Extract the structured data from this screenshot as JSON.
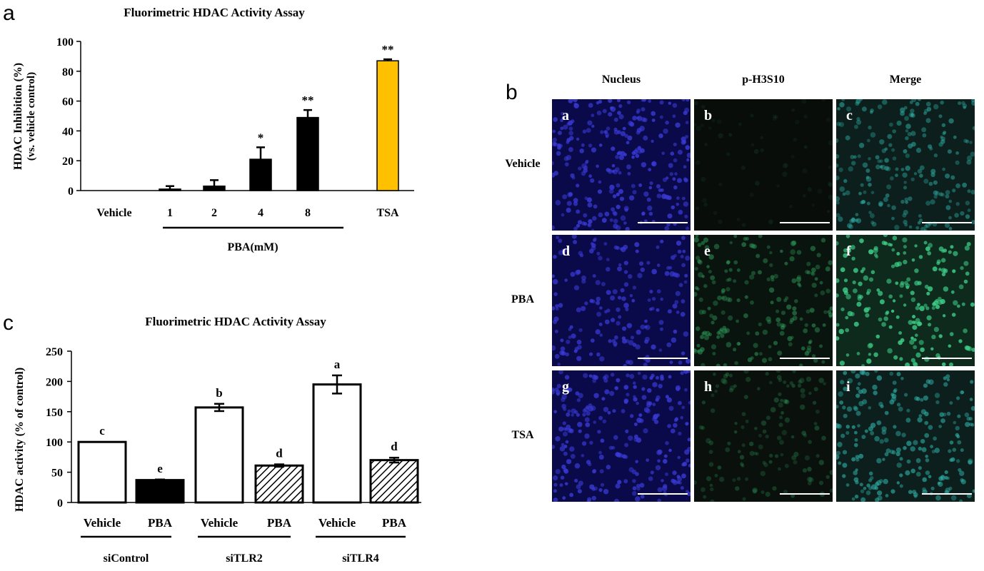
{
  "panels": {
    "a": {
      "letter": "a",
      "title": "Fluorimetric  HDAC Activity Assay"
    },
    "b": {
      "letter": "b"
    },
    "c": {
      "letter": "c",
      "title": "Fluorimetric  HDAC Activity Assay"
    }
  },
  "chart_data": [
    {
      "type": "bar",
      "title": "Fluorimetric  HDAC Activity Assay",
      "ylabel": "HDAC Inhibition  (%)",
      "ylabel2": "(vs. vehicle control)",
      "ylim": [
        0,
        100
      ],
      "yticks": [
        0,
        20,
        40,
        60,
        80,
        100
      ],
      "categories": [
        "Vehicle",
        "1",
        "2",
        "4",
        "8",
        "TSA"
      ],
      "values": [
        0,
        1,
        3,
        21,
        49,
        87
      ],
      "errors": [
        0,
        2,
        4,
        8,
        5,
        1
      ],
      "significance": [
        "",
        "",
        "",
        "*",
        "**",
        "**"
      ],
      "bar_colors": [
        "#000000",
        "#000000",
        "#000000",
        "#000000",
        "#000000",
        "#ffc000"
      ],
      "group_label": "PBA(mM)",
      "group_span": [
        "1",
        "8"
      ]
    },
    {
      "type": "bar",
      "title": "Fluorimetric  HDAC Activity Assay",
      "ylabel": "HDAC activity (% of control)",
      "ylim": [
        0,
        250
      ],
      "yticks": [
        0,
        50,
        100,
        150,
        200,
        250
      ],
      "categories": [
        "Vehicle",
        "PBA",
        "Vehicle",
        "PBA",
        "Vehicle",
        "PBA"
      ],
      "values": [
        100,
        37,
        157,
        61,
        195,
        70
      ],
      "errors": [
        0,
        1,
        6,
        2,
        15,
        4
      ],
      "significance": [
        "c",
        "e",
        "b",
        "d",
        "a",
        "d"
      ],
      "bar_fills": [
        "white",
        "black",
        "white",
        "hatch",
        "white",
        "hatch"
      ],
      "groups": [
        {
          "label": "siControl",
          "indices": [
            0,
            1
          ]
        },
        {
          "label": "siTLR2",
          "indices": [
            2,
            3
          ]
        },
        {
          "label": "siTLR4",
          "indices": [
            4,
            5
          ]
        }
      ]
    }
  ],
  "micrographs": {
    "columns": [
      "Nucleus",
      "p-H3S10",
      "Merge"
    ],
    "rows": [
      "Vehicle",
      "PBA",
      "TSA"
    ],
    "tags": [
      [
        "a",
        "b",
        "c"
      ],
      [
        "d",
        "e",
        "f"
      ],
      [
        "g",
        "h",
        "i"
      ]
    ],
    "colors": {
      "nucleus": "#3a3ad8",
      "phospho": "#2e9a5a",
      "merge": "#2fb0a8"
    }
  }
}
